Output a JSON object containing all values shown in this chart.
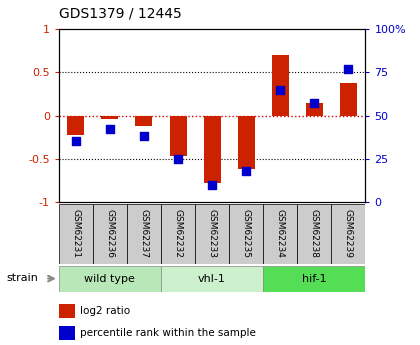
{
  "title": "GDS1379 / 12445",
  "samples": [
    "GSM62231",
    "GSM62236",
    "GSM62237",
    "GSM62232",
    "GSM62233",
    "GSM62235",
    "GSM62234",
    "GSM62238",
    "GSM62239"
  ],
  "log2_ratio": [
    -0.22,
    -0.04,
    -0.12,
    -0.47,
    -0.78,
    -0.62,
    0.7,
    0.15,
    0.38
  ],
  "percentile_rank": [
    35,
    42,
    38,
    25,
    10,
    18,
    65,
    57,
    77
  ],
  "groups": [
    {
      "label": "wild type",
      "start": 0,
      "end": 3,
      "color": "#b8e8b8"
    },
    {
      "label": "vhl-1",
      "start": 3,
      "end": 6,
      "color": "#ccf0cc"
    },
    {
      "label": "hif-1",
      "start": 6,
      "end": 9,
      "color": "#55dd55"
    }
  ],
  "ylim_left": [
    -1,
    1
  ],
  "ylim_right": [
    0,
    100
  ],
  "yticks_left": [
    -1,
    -0.5,
    0,
    0.5,
    1
  ],
  "ytick_labels_left": [
    "-1",
    "-0.5",
    "0",
    "0.5",
    "1"
  ],
  "yticks_right": [
    0,
    25,
    50,
    75,
    100
  ],
  "ytick_labels_right": [
    "0",
    "25",
    "50",
    "75",
    "100%"
  ],
  "bar_color": "#cc2200",
  "dot_color": "#0000cc",
  "hline_color": "#dd0000",
  "grid_color": "#000000",
  "bg_color": "#ffffff",
  "sample_box_color": "#cccccc",
  "strain_label": "strain",
  "bar_width": 0.5,
  "dot_size": 40
}
